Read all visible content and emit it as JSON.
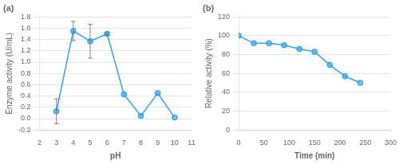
{
  "chart_data": [
    {
      "type": "line",
      "title": "(a)",
      "x": [
        3,
        4,
        5,
        6,
        7,
        8,
        9,
        10
      ],
      "values": [
        0.13,
        1.55,
        1.37,
        1.5,
        0.43,
        0.05,
        0.45,
        0.02
      ],
      "yerr": [
        0.22,
        0.17,
        0.3,
        0.02,
        0,
        0,
        0,
        0
      ],
      "xlabel": "pH",
      "ylabel": "Enzyme activity (U/mL)",
      "xlim": [
        2,
        11
      ],
      "xticks": [
        2,
        3,
        4,
        5,
        6,
        7,
        8,
        9,
        10,
        11
      ],
      "ylim": [
        -0.2,
        1.8
      ],
      "yticks": [
        -0.2,
        {
          "value": 0,
          "label": "0.0"
        },
        0.2,
        0.4,
        0.6,
        0.8,
        {
          "value": 1,
          "label": "1.0"
        },
        1.2,
        1.4,
        1.6,
        1.8
      ],
      "grid": "y",
      "marker": "circle"
    },
    {
      "type": "line",
      "title": "(b)",
      "x": [
        0,
        30,
        60,
        90,
        120,
        150,
        180,
        210,
        240
      ],
      "values": [
        100,
        92,
        92,
        90,
        86,
        83,
        69,
        57,
        50
      ],
      "xlabel": "Time (min)",
      "ylabel": "Relative activity (%)",
      "xlim": [
        0,
        300
      ],
      "xticks": [
        0,
        50,
        100,
        150,
        200,
        250,
        300
      ],
      "ylim": [
        0,
        120
      ],
      "yticks": [
        0,
        20,
        40,
        60,
        80,
        100,
        120
      ],
      "grid": "y",
      "marker": "circle"
    }
  ]
}
